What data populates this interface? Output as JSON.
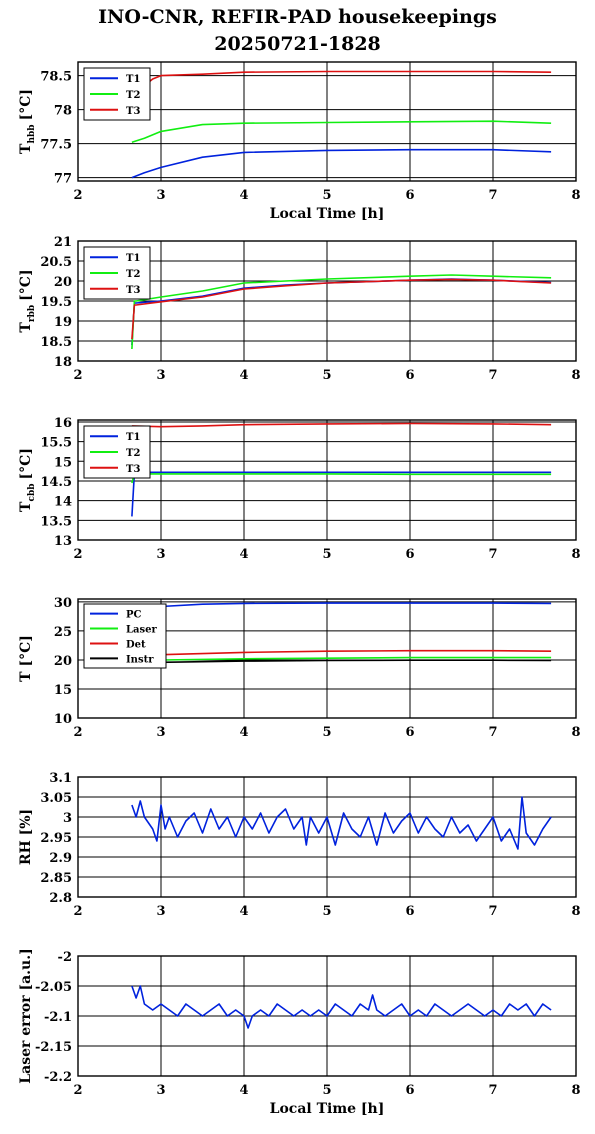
{
  "title_line1": "INO-CNR, REFIR-PAD housekeepings",
  "title_line2": "20250721-1828",
  "colors": {
    "blue": "#0022dd",
    "green": "#11ee11",
    "red": "#dd1111",
    "black": "#000000"
  },
  "chart_data": [
    {
      "type": "line",
      "ylabel": "T_hbb [°C]",
      "ylabel_main": "T",
      "ylabel_sub": "hbb",
      "ylabel_unit": "[°C]",
      "xlabel": "Local Time [h]",
      "xlim": [
        2,
        8
      ],
      "ylim": [
        76.95,
        78.7
      ],
      "xticks": [
        "2",
        "3",
        "4",
        "5",
        "6",
        "7",
        "8"
      ],
      "yticks": [
        "77",
        "77.5",
        "78",
        "78.5"
      ],
      "ytick_values": [
        77,
        77.5,
        78,
        78.5
      ],
      "grid": true,
      "legend": "top-left",
      "series": [
        {
          "name": "T1",
          "color": "blue",
          "x": [
            2.65,
            2.8,
            3.0,
            3.5,
            4.0,
            5.0,
            6.0,
            7.0,
            7.7
          ],
          "values": [
            77.0,
            77.07,
            77.15,
            77.3,
            77.37,
            77.4,
            77.41,
            77.41,
            77.38
          ]
        },
        {
          "name": "T2",
          "color": "green",
          "x": [
            2.65,
            2.8,
            3.0,
            3.5,
            4.0,
            5.0,
            6.0,
            7.0,
            7.7
          ],
          "values": [
            77.52,
            77.58,
            77.68,
            77.78,
            77.8,
            77.81,
            77.82,
            77.83,
            77.8
          ]
        },
        {
          "name": "T3",
          "color": "red",
          "x": [
            2.65,
            2.8,
            2.9,
            3.0,
            3.5,
            4.0,
            5.0,
            6.0,
            7.0,
            7.7
          ],
          "values": [
            78.5,
            78.35,
            78.45,
            78.5,
            78.52,
            78.55,
            78.56,
            78.56,
            78.56,
            78.55
          ]
        }
      ]
    },
    {
      "type": "line",
      "ylabel": "T_rbb [°C]",
      "ylabel_main": "T",
      "ylabel_sub": "rbb",
      "ylabel_unit": "[°C]",
      "xlabel": "",
      "xlim": [
        2,
        8
      ],
      "ylim": [
        18,
        21
      ],
      "xticks": [
        "2",
        "3",
        "4",
        "5",
        "6",
        "7",
        "8"
      ],
      "yticks": [
        "18",
        "18.5",
        "19",
        "19.5",
        "20",
        "20.5",
        "21"
      ],
      "ytick_values": [
        18,
        18.5,
        19,
        19.5,
        20,
        20.5,
        21
      ],
      "grid": true,
      "legend": "top-left",
      "series": [
        {
          "name": "T1",
          "color": "blue",
          "x": [
            2.65,
            2.68,
            2.7,
            3.0,
            3.5,
            4.0,
            4.5,
            5.0,
            6.0,
            6.5,
            7.0,
            7.7
          ],
          "values": [
            18.4,
            19.45,
            19.45,
            19.5,
            19.62,
            19.82,
            19.9,
            19.95,
            20.02,
            20.05,
            20.02,
            19.96
          ]
        },
        {
          "name": "T2",
          "color": "green",
          "x": [
            2.65,
            2.68,
            2.7,
            3.0,
            3.5,
            4.0,
            4.5,
            5.0,
            6.0,
            6.5,
            7.0,
            7.7
          ],
          "values": [
            18.3,
            19.5,
            19.5,
            19.6,
            19.75,
            19.95,
            20.0,
            20.05,
            20.12,
            20.15,
            20.12,
            20.08
          ]
        },
        {
          "name": "T3",
          "color": "red",
          "x": [
            2.65,
            2.68,
            2.7,
            3.0,
            3.5,
            4.0,
            4.5,
            5.0,
            6.0,
            6.5,
            7.0,
            7.7
          ],
          "values": [
            18.55,
            19.4,
            19.4,
            19.48,
            19.6,
            19.8,
            19.88,
            19.95,
            20.02,
            20.04,
            20.02,
            19.95
          ]
        }
      ]
    },
    {
      "type": "line",
      "ylabel": "T_cbb [°C]",
      "ylabel_main": "T",
      "ylabel_sub": "cbb",
      "ylabel_unit": "[°C]",
      "xlabel": "",
      "xlim": [
        2,
        8
      ],
      "ylim": [
        13,
        16.05
      ],
      "xticks": [
        "2",
        "3",
        "4",
        "5",
        "6",
        "7",
        "8"
      ],
      "yticks": [
        "13",
        "13.5",
        "14",
        "14.5",
        "15",
        "15.5",
        "16"
      ],
      "ytick_values": [
        13,
        13.5,
        14,
        14.5,
        15,
        15.5,
        16
      ],
      "grid": true,
      "legend": "top-left",
      "series": [
        {
          "name": "T1",
          "color": "blue",
          "x": [
            2.65,
            2.68,
            2.7,
            3.0,
            4.0,
            5.0,
            6.0,
            7.0,
            7.7
          ],
          "values": [
            13.6,
            14.7,
            14.72,
            14.72,
            14.72,
            14.72,
            14.72,
            14.72,
            14.72
          ]
        },
        {
          "name": "T2",
          "color": "green",
          "x": [
            2.65,
            2.68,
            2.7,
            3.0,
            4.0,
            5.0,
            6.0,
            7.0,
            7.7
          ],
          "values": [
            14.45,
            14.68,
            14.68,
            14.68,
            14.68,
            14.68,
            14.67,
            14.67,
            14.67
          ]
        },
        {
          "name": "T3",
          "color": "red",
          "x": [
            2.65,
            3.0,
            3.5,
            4.0,
            5.0,
            6.0,
            7.0,
            7.7
          ],
          "values": [
            15.9,
            15.88,
            15.9,
            15.93,
            15.95,
            15.96,
            15.95,
            15.93
          ]
        }
      ]
    },
    {
      "type": "line",
      "ylabel": "T [°C]",
      "ylabel_main": "T [°C]",
      "ylabel_sub": "",
      "ylabel_unit": "",
      "xlabel": "",
      "xlim": [
        2,
        8
      ],
      "ylim": [
        10,
        30.5
      ],
      "xticks": [
        "2",
        "3",
        "4",
        "5",
        "6",
        "7",
        "8"
      ],
      "yticks": [
        "10",
        "15",
        "20",
        "25",
        "30"
      ],
      "ytick_values": [
        10,
        15,
        20,
        25,
        30
      ],
      "grid": true,
      "legend": "top-left",
      "series": [
        {
          "name": "PC",
          "color": "blue",
          "x": [
            2.65,
            3.0,
            3.5,
            4.0,
            5.0,
            6.0,
            7.0,
            7.7
          ],
          "values": [
            28.6,
            29.2,
            29.6,
            29.75,
            29.8,
            29.8,
            29.8,
            29.75
          ]
        },
        {
          "name": "Laser",
          "color": "green",
          "x": [
            2.65,
            3.0,
            4.0,
            5.0,
            6.0,
            7.0,
            7.7
          ],
          "values": [
            19.8,
            20.0,
            20.2,
            20.3,
            20.4,
            20.4,
            20.4
          ]
        },
        {
          "name": "Det",
          "color": "red",
          "x": [
            2.65,
            3.0,
            3.5,
            4.0,
            5.0,
            6.0,
            7.0,
            7.7
          ],
          "values": [
            20.5,
            20.9,
            21.1,
            21.3,
            21.5,
            21.6,
            21.6,
            21.5
          ]
        },
        {
          "name": "Instr",
          "color": "black",
          "x": [
            2.65,
            3.0,
            4.0,
            5.0,
            6.0,
            7.0,
            7.7
          ],
          "values": [
            19.4,
            19.6,
            19.8,
            19.9,
            19.95,
            19.95,
            19.9
          ]
        }
      ]
    },
    {
      "type": "line",
      "ylabel": "RH [%]",
      "ylabel_main": "RH [%]",
      "ylabel_sub": "",
      "ylabel_unit": "",
      "xlabel": "",
      "xlim": [
        2,
        8
      ],
      "ylim": [
        2.8,
        3.1
      ],
      "xticks": [
        "2",
        "3",
        "4",
        "5",
        "6",
        "7",
        "8"
      ],
      "yticks": [
        "2.8",
        "2.85",
        "2.9",
        "2.95",
        "3",
        "3.05",
        "3.1"
      ],
      "ytick_values": [
        2.8,
        2.85,
        2.9,
        2.95,
        3.0,
        3.05,
        3.1
      ],
      "grid": true,
      "legend": "none",
      "series": [
        {
          "name": "",
          "color": "blue",
          "x": [
            2.65,
            2.7,
            2.75,
            2.8,
            2.9,
            2.95,
            3.0,
            3.05,
            3.1,
            3.2,
            3.3,
            3.4,
            3.5,
            3.6,
            3.7,
            3.8,
            3.9,
            4.0,
            4.1,
            4.2,
            4.3,
            4.4,
            4.5,
            4.6,
            4.7,
            4.75,
            4.8,
            4.9,
            5.0,
            5.1,
            5.2,
            5.3,
            5.4,
            5.5,
            5.6,
            5.7,
            5.8,
            5.9,
            6.0,
            6.1,
            6.2,
            6.3,
            6.4,
            6.5,
            6.6,
            6.7,
            6.8,
            6.9,
            7.0,
            7.1,
            7.2,
            7.3,
            7.35,
            7.4,
            7.5,
            7.6,
            7.7
          ],
          "values": [
            3.03,
            3.0,
            3.04,
            3.0,
            2.97,
            2.94,
            3.03,
            2.97,
            3.0,
            2.95,
            2.99,
            3.01,
            2.96,
            3.02,
            2.97,
            3.0,
            2.95,
            3.0,
            2.97,
            3.01,
            2.96,
            3.0,
            3.02,
            2.97,
            3.0,
            2.93,
            3.0,
            2.96,
            3.0,
            2.93,
            3.01,
            2.97,
            2.95,
            3.0,
            2.93,
            3.01,
            2.96,
            2.99,
            3.01,
            2.96,
            3.0,
            2.97,
            2.95,
            3.0,
            2.96,
            2.98,
            2.94,
            2.97,
            3.0,
            2.94,
            2.97,
            2.92,
            3.05,
            2.96,
            2.93,
            2.97,
            3.0
          ]
        }
      ]
    },
    {
      "type": "line",
      "ylabel": "Laser error [a.u.]",
      "ylabel_main": "Laser error [a.u.]",
      "ylabel_sub": "",
      "ylabel_unit": "",
      "xlabel": "Local Time [h]",
      "xlim": [
        2,
        8
      ],
      "ylim": [
        -2.2,
        -2.0
      ],
      "xticks": [
        "2",
        "3",
        "4",
        "5",
        "6",
        "7",
        "8"
      ],
      "yticks": [
        "-2.2",
        "-2.15",
        "-2.1",
        "-2.05",
        "-2"
      ],
      "ytick_values": [
        -2.2,
        -2.15,
        -2.1,
        -2.05,
        -2.0
      ],
      "grid": true,
      "legend": "none",
      "series": [
        {
          "name": "",
          "color": "blue",
          "x": [
            2.65,
            2.7,
            2.75,
            2.8,
            2.9,
            3.0,
            3.1,
            3.2,
            3.3,
            3.4,
            3.5,
            3.6,
            3.7,
            3.8,
            3.9,
            4.0,
            4.05,
            4.1,
            4.2,
            4.3,
            4.4,
            4.5,
            4.6,
            4.7,
            4.8,
            4.9,
            5.0,
            5.1,
            5.2,
            5.3,
            5.4,
            5.5,
            5.55,
            5.6,
            5.7,
            5.8,
            5.9,
            6.0,
            6.1,
            6.2,
            6.3,
            6.4,
            6.5,
            6.6,
            6.7,
            6.8,
            6.9,
            7.0,
            7.1,
            7.2,
            7.3,
            7.4,
            7.5,
            7.6,
            7.7
          ],
          "values": [
            -2.05,
            -2.07,
            -2.05,
            -2.08,
            -2.09,
            -2.08,
            -2.09,
            -2.1,
            -2.08,
            -2.09,
            -2.1,
            -2.09,
            -2.08,
            -2.1,
            -2.09,
            -2.1,
            -2.12,
            -2.1,
            -2.09,
            -2.1,
            -2.08,
            -2.09,
            -2.1,
            -2.09,
            -2.1,
            -2.09,
            -2.1,
            -2.08,
            -2.09,
            -2.1,
            -2.08,
            -2.09,
            -2.065,
            -2.09,
            -2.1,
            -2.09,
            -2.08,
            -2.1,
            -2.09,
            -2.1,
            -2.08,
            -2.09,
            -2.1,
            -2.09,
            -2.08,
            -2.09,
            -2.1,
            -2.09,
            -2.1,
            -2.08,
            -2.09,
            -2.08,
            -2.1,
            -2.08,
            -2.09
          ]
        }
      ]
    }
  ]
}
